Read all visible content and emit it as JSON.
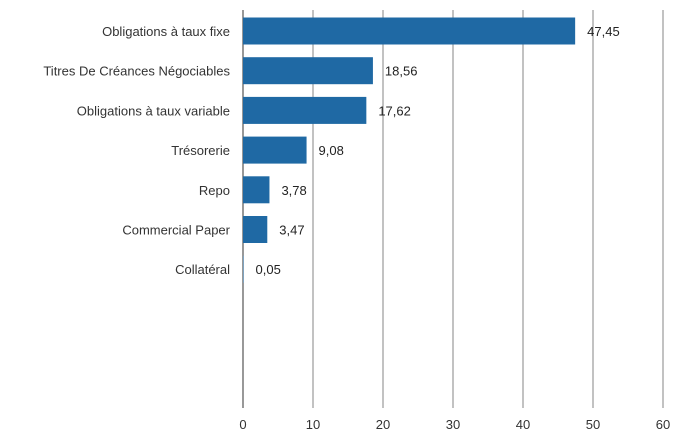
{
  "chart_data": {
    "type": "bar",
    "orientation": "horizontal",
    "title": "",
    "xlabel": "",
    "ylabel": "",
    "categories": [
      "Obligations à taux fixe",
      "Titres De Créances Négociables",
      "Obligations à taux variable",
      "Trésorerie",
      "Repo",
      "Commercial Paper",
      "Collatéral"
    ],
    "values": [
      47.45,
      18.56,
      17.62,
      9.08,
      3.78,
      3.47,
      0.05
    ],
    "value_labels": [
      "47,45",
      "18,56",
      "17,62",
      "9,08",
      "3,78",
      "3,47",
      "0,05"
    ],
    "xlim": [
      0,
      60
    ],
    "x_ticks": [
      0,
      10,
      20,
      30,
      40,
      50,
      60
    ],
    "x_tick_labels": [
      "0",
      "10",
      "20",
      "30",
      "40",
      "50",
      "60"
    ],
    "grid": true,
    "legend": "none",
    "colors": {
      "bar": "#1f69a4"
    }
  }
}
